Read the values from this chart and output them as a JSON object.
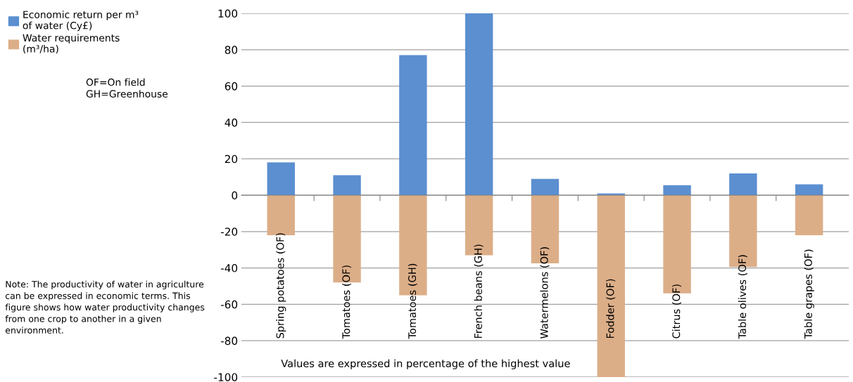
{
  "chart_data": {
    "type": "bar",
    "categories": [
      "Spring potatoes (OF)",
      "Tomatoes (OF)",
      "Tomatoes (GH)",
      "French beans (GH)",
      "Watermelons (OF)",
      "Fodder (OF)",
      "Citrus (OF)",
      "Table olives (OF)",
      "Table grapes (OF)"
    ],
    "series": [
      {
        "name": "Economic return per m³ of water (Cy£)",
        "color": "#5b8fd0",
        "values": [
          18,
          11,
          77,
          100,
          9,
          1,
          5.5,
          12,
          6
        ]
      },
      {
        "name": "Water requirements (m³/ha)",
        "color": "#dcae88",
        "values": [
          -22,
          -48,
          -55,
          -33,
          -37.5,
          -100,
          -54,
          -39.5,
          -22
        ]
      }
    ],
    "stacked": true,
    "ylim": [
      -100,
      100
    ],
    "yticks": [
      -100,
      -80,
      -60,
      -40,
      -20,
      0,
      20,
      40,
      60,
      80,
      100
    ],
    "grid": "y",
    "legend": "top left",
    "annotations": [
      "OF=On field\nGH=Greenhouse",
      "Values are expressed in percentage of the highest value",
      "Note: The productivity of water in agriculture can be expressed in economic terms. This figure shows how water productivity changes from one crop to another in a given environment."
    ]
  }
}
